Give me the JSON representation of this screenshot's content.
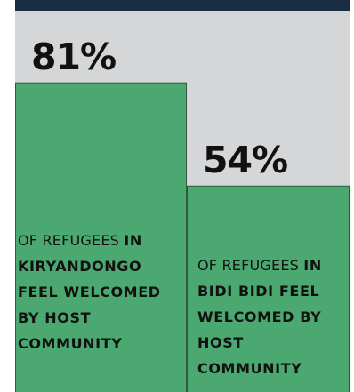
{
  "colors": {
    "background": "#d5d6d8",
    "top_bar": "#1b2c45",
    "bar_fill": "#4aa870",
    "bar_border": "#2e5a3c",
    "text": "#111111"
  },
  "chart_data": {
    "type": "bar",
    "categories": [
      "Kiryandongo",
      "Bidi Bidi"
    ],
    "values": [
      81,
      54
    ],
    "ylim": [
      0,
      100
    ],
    "value_labels": [
      "81%",
      "54%"
    ],
    "descriptions": [
      {
        "light": "of refugees ",
        "bold": "in Kiryandongo feel welcomed by host community"
      },
      {
        "light": "of refugees ",
        "bold": "in Bidi Bidi feel welcomed by host community"
      }
    ],
    "grid": false,
    "legend": "none"
  }
}
